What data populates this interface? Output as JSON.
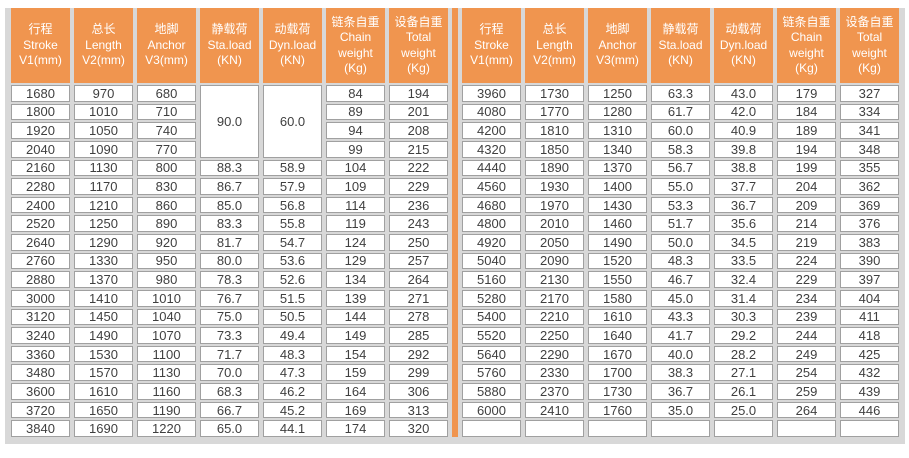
{
  "colors": {
    "header_bg": "#F0954F",
    "divider": "#F0954F",
    "frame_bg": "#D8D8D8",
    "cell_border": "#A0A0A0",
    "cell_text": "#3F3F3F",
    "header_text": "#FFFFFF"
  },
  "table": {
    "headers": [
      {
        "lines": [
          "行程",
          "Stroke",
          "V1(mm)"
        ]
      },
      {
        "lines": [
          "总长",
          "Length",
          "V2(mm)"
        ]
      },
      {
        "lines": [
          "地脚",
          "Anchor",
          "V3(mm)"
        ]
      },
      {
        "lines": [
          "静载荷",
          "Sta.load",
          "(KN)"
        ]
      },
      {
        "lines": [
          "动载荷",
          "Dyn.load",
          "(KN)"
        ]
      },
      {
        "lines": [
          "链条自重",
          "Chain",
          "weight",
          "(Kg)"
        ]
      },
      {
        "lines": [
          "设备自重",
          "Total",
          "weight",
          "(Kg)"
        ]
      }
    ],
    "merge_note": "left rows 0-3 share one Sta.load cell (90.0) and one Dyn.load cell (60.0)",
    "left": {
      "rows": [
        [
          "1680",
          "970",
          "680",
          "90.0",
          "60.0",
          "84",
          "194"
        ],
        [
          "1800",
          "1010",
          "710",
          null,
          null,
          "89",
          "201"
        ],
        [
          "1920",
          "1050",
          "740",
          null,
          null,
          "94",
          "208"
        ],
        [
          "2040",
          "1090",
          "770",
          null,
          null,
          "99",
          "215"
        ],
        [
          "2160",
          "1130",
          "800",
          "88.3",
          "58.9",
          "104",
          "222"
        ],
        [
          "2280",
          "1170",
          "830",
          "86.7",
          "57.9",
          "109",
          "229"
        ],
        [
          "2400",
          "1210",
          "860",
          "85.0",
          "56.8",
          "114",
          "236"
        ],
        [
          "2520",
          "1250",
          "890",
          "83.3",
          "55.8",
          "119",
          "243"
        ],
        [
          "2640",
          "1290",
          "920",
          "81.7",
          "54.7",
          "124",
          "250"
        ],
        [
          "2760",
          "1330",
          "950",
          "80.0",
          "53.6",
          "129",
          "257"
        ],
        [
          "2880",
          "1370",
          "980",
          "78.3",
          "52.6",
          "134",
          "264"
        ],
        [
          "3000",
          "1410",
          "1010",
          "76.7",
          "51.5",
          "139",
          "271"
        ],
        [
          "3120",
          "1450",
          "1040",
          "75.0",
          "50.5",
          "144",
          "278"
        ],
        [
          "3240",
          "1490",
          "1070",
          "73.3",
          "49.4",
          "149",
          "285"
        ],
        [
          "3360",
          "1530",
          "1100",
          "71.7",
          "48.3",
          "154",
          "292"
        ],
        [
          "3480",
          "1570",
          "1130",
          "70.0",
          "47.3",
          "159",
          "299"
        ],
        [
          "3600",
          "1610",
          "1160",
          "68.3",
          "46.2",
          "164",
          "306"
        ],
        [
          "3720",
          "1650",
          "1190",
          "66.7",
          "45.2",
          "169",
          "313"
        ],
        [
          "3840",
          "1690",
          "1220",
          "65.0",
          "44.1",
          "174",
          "320"
        ]
      ]
    },
    "right": {
      "rows": [
        [
          "3960",
          "1730",
          "1250",
          "63.3",
          "43.0",
          "179",
          "327"
        ],
        [
          "4080",
          "1770",
          "1280",
          "61.7",
          "42.0",
          "184",
          "334"
        ],
        [
          "4200",
          "1810",
          "1310",
          "60.0",
          "40.9",
          "189",
          "341"
        ],
        [
          "4320",
          "1850",
          "1340",
          "58.3",
          "39.8",
          "194",
          "348"
        ],
        [
          "4440",
          "1890",
          "1370",
          "56.7",
          "38.8",
          "199",
          "355"
        ],
        [
          "4560",
          "1930",
          "1400",
          "55.0",
          "37.7",
          "204",
          "362"
        ],
        [
          "4680",
          "1970",
          "1430",
          "53.3",
          "36.7",
          "209",
          "369"
        ],
        [
          "4800",
          "2010",
          "1460",
          "51.7",
          "35.6",
          "214",
          "376"
        ],
        [
          "4920",
          "2050",
          "1490",
          "50.0",
          "34.5",
          "219",
          "383"
        ],
        [
          "5040",
          "2090",
          "1520",
          "48.3",
          "33.5",
          "224",
          "390"
        ],
        [
          "5160",
          "2130",
          "1550",
          "46.7",
          "32.4",
          "229",
          "397"
        ],
        [
          "5280",
          "2170",
          "1580",
          "45.0",
          "31.4",
          "234",
          "404"
        ],
        [
          "5400",
          "2210",
          "1610",
          "43.3",
          "30.3",
          "239",
          "411"
        ],
        [
          "5520",
          "2250",
          "1640",
          "41.7",
          "29.2",
          "244",
          "418"
        ],
        [
          "5640",
          "2290",
          "1670",
          "40.0",
          "28.2",
          "249",
          "425"
        ],
        [
          "5760",
          "2330",
          "1700",
          "38.3",
          "27.1",
          "254",
          "432"
        ],
        [
          "5880",
          "2370",
          "1730",
          "36.7",
          "26.1",
          "259",
          "439"
        ],
        [
          "6000",
          "2410",
          "1760",
          "35.0",
          "25.0",
          "264",
          "446"
        ],
        [
          "",
          "",
          "",
          "",
          "",
          "",
          ""
        ]
      ]
    }
  }
}
